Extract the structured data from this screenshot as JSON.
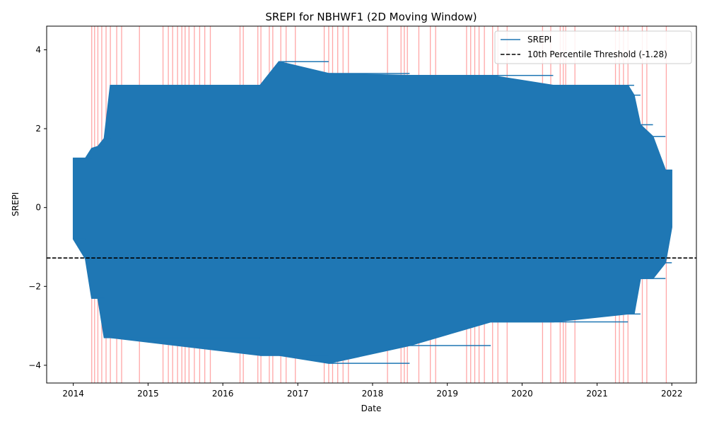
{
  "chart_data": {
    "type": "line",
    "title": "SREPI for NBHWF1 (2D Moving Window)",
    "xlabel": "Date",
    "ylabel": "SREPI",
    "x_ticks": [
      "2014",
      "2015",
      "2016",
      "2017",
      "2018",
      "2019",
      "2020",
      "2021",
      "2022"
    ],
    "y_ticks": [
      {
        "value": -4,
        "label": "−4"
      },
      {
        "value": -2,
        "label": "−2"
      },
      {
        "value": 0,
        "label": "0"
      },
      {
        "value": 2,
        "label": "2"
      },
      {
        "value": 4,
        "label": "4"
      }
    ],
    "xlim": [
      "2013-08-24",
      "2022-05-01"
    ],
    "ylim": [
      -4.45,
      4.6
    ],
    "grid": false,
    "legend_position": "top-right",
    "colors": {
      "series": "#1f77b4",
      "threshold": "#000000",
      "events": "#ff0000"
    },
    "series": [
      {
        "name": "SREPI",
        "envelope": [
          {
            "x": "2014-01-01",
            "min": -0.8,
            "max": 1.25
          },
          {
            "x": "2014-03-01",
            "min": -1.3,
            "max": 1.25
          },
          {
            "x": "2014-04-01",
            "min": -2.3,
            "max": 1.5
          },
          {
            "x": "2014-05-01",
            "min": -2.3,
            "max": 1.55
          },
          {
            "x": "2014-06-01",
            "min": -3.3,
            "max": 1.75
          },
          {
            "x": "2014-07-01",
            "min": -3.3,
            "max": 3.1
          },
          {
            "x": "2016-07-01",
            "min": -3.75,
            "max": 3.1
          },
          {
            "x": "2016-10-01",
            "min": -3.75,
            "max": 3.7
          },
          {
            "x": "2017-06-01",
            "min": -3.95,
            "max": 3.4
          },
          {
            "x": "2018-07-01",
            "min": -3.5,
            "max": 3.35
          },
          {
            "x": "2019-08-01",
            "min": -2.9,
            "max": 3.35
          },
          {
            "x": "2020-06-01",
            "min": -2.9,
            "max": 3.1
          },
          {
            "x": "2021-06-01",
            "min": -2.7,
            "max": 3.1
          },
          {
            "x": "2021-07-01",
            "min": -2.7,
            "max": 2.85
          },
          {
            "x": "2021-08-01",
            "min": -1.8,
            "max": 2.1
          },
          {
            "x": "2021-10-01",
            "min": -1.8,
            "max": 1.8
          },
          {
            "x": "2021-12-01",
            "min": -1.4,
            "max": 0.95
          },
          {
            "x": "2022-01-01",
            "min": -0.5,
            "max": 0.95
          }
        ]
      }
    ],
    "threshold": {
      "name": "10th Percentile Threshold (-1.28)",
      "value": -1.28
    },
    "events": [
      "2014-04-01",
      "2014-04-15",
      "2014-05-01",
      "2014-05-20",
      "2014-06-10",
      "2014-07-01",
      "2014-08-01",
      "2014-08-25",
      "2014-11-20",
      "2015-03-15",
      "2015-04-10",
      "2015-05-01",
      "2015-05-25",
      "2015-06-15",
      "2015-07-01",
      "2015-07-20",
      "2015-08-15",
      "2015-09-10",
      "2015-10-05",
      "2015-11-01",
      "2016-03-25",
      "2016-04-10",
      "2016-06-20",
      "2016-07-05",
      "2016-08-15",
      "2016-09-01",
      "2016-10-10",
      "2016-11-05",
      "2016-12-20",
      "2017-05-10",
      "2017-06-01",
      "2017-06-20",
      "2017-07-15",
      "2017-08-10",
      "2017-09-05",
      "2018-03-15",
      "2018-05-20",
      "2018-06-05",
      "2018-06-20",
      "2018-08-15",
      "2018-10-10",
      "2018-11-05",
      "2019-04-05",
      "2019-04-25",
      "2019-05-15",
      "2019-06-05",
      "2019-07-01",
      "2019-08-10",
      "2019-09-05",
      "2019-10-20",
      "2020-04-10",
      "2020-05-20",
      "2020-07-05",
      "2020-07-20",
      "2020-08-01",
      "2020-09-15",
      "2021-04-01",
      "2021-04-20",
      "2021-05-10",
      "2021-06-01",
      "2021-08-10",
      "2021-09-01",
      "2021-12-05"
    ]
  }
}
